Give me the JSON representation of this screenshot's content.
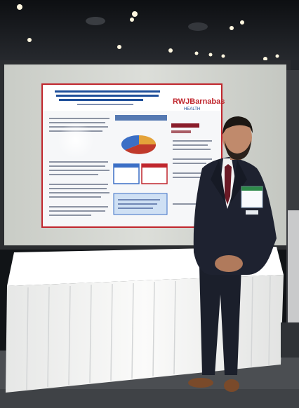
{
  "photo": {
    "subject": "",
    "poster": {
      "logo_text": "RWJBarnabas",
      "logo_subtext": "HEALTH",
      "pie_colors": [
        "#c0392b",
        "#3b6fc6",
        "#d8d8d8"
      ],
      "accent_red": "#c0262d",
      "accent_blue": "#1f4f9a"
    },
    "colors": {
      "ceiling": "#1a1d22",
      "panel": "#d6d8d2",
      "tablecloth": "#f4f4f2",
      "carpet": "#4b4e52",
      "suit": "#1e2230"
    }
  }
}
